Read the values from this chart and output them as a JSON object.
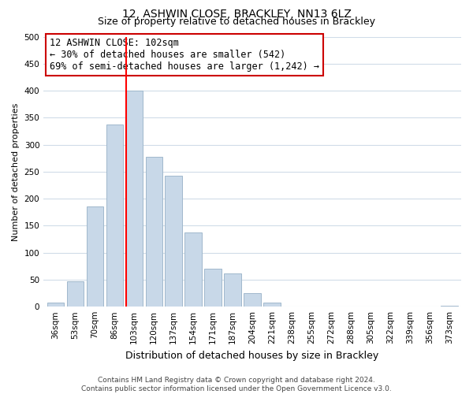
{
  "title": "12, ASHWIN CLOSE, BRACKLEY, NN13 6LZ",
  "subtitle": "Size of property relative to detached houses in Brackley",
  "xlabel": "Distribution of detached houses by size in Brackley",
  "ylabel": "Number of detached properties",
  "bar_labels": [
    "36sqm",
    "53sqm",
    "70sqm",
    "86sqm",
    "103sqm",
    "120sqm",
    "137sqm",
    "154sqm",
    "171sqm",
    "187sqm",
    "204sqm",
    "221sqm",
    "238sqm",
    "255sqm",
    "272sqm",
    "288sqm",
    "305sqm",
    "322sqm",
    "339sqm",
    "356sqm",
    "373sqm"
  ],
  "bar_values": [
    8,
    47,
    185,
    338,
    400,
    277,
    242,
    137,
    70,
    62,
    25,
    8,
    0,
    0,
    0,
    0,
    0,
    0,
    0,
    0,
    2
  ],
  "bar_color": "#c8d8e8",
  "bar_edge_color": "#a0b8cc",
  "vline_index": 4,
  "vline_color": "red",
  "annotation_line1": "12 ASHWIN CLOSE: 102sqm",
  "annotation_line2": "← 30% of detached houses are smaller (542)",
  "annotation_line3": "69% of semi-detached houses are larger (1,242) →",
  "ylim": [
    0,
    500
  ],
  "yticks": [
    0,
    50,
    100,
    150,
    200,
    250,
    300,
    350,
    400,
    450,
    500
  ],
  "footer_line1": "Contains HM Land Registry data © Crown copyright and database right 2024.",
  "footer_line2": "Contains public sector information licensed under the Open Government Licence v3.0.",
  "background_color": "#ffffff",
  "grid_color": "#d0dce8",
  "title_fontsize": 10,
  "subtitle_fontsize": 9,
  "ylabel_fontsize": 8,
  "xlabel_fontsize": 9,
  "annotation_fontsize": 8.5,
  "tick_fontsize": 7.5,
  "footer_fontsize": 6.5
}
